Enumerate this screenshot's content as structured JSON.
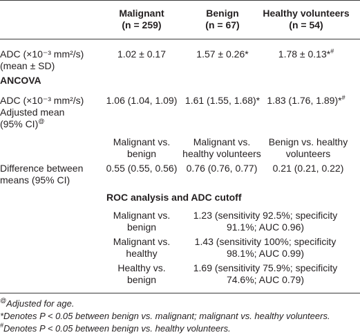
{
  "header": {
    "malignant_name": "Malignant",
    "malignant_n": "(n = 259)",
    "benign_name": "Benign",
    "benign_n": "(n = 67)",
    "healthy_name": "Healthy volunteers",
    "healthy_n": "(n = 54)"
  },
  "adc_row": {
    "label_line1": "ADC (×10⁻³ mm²/s)",
    "label_line2": "(mean ± SD)",
    "malignant": "1.02 ± 0.17",
    "benign": "1.57 ± 0.26*",
    "healthy": "1.78 ± 0.13*",
    "healthy_mark": "#"
  },
  "ancova": {
    "heading": "ANCOVA",
    "label_line1": "ADC (×10⁻³ mm²/s)",
    "label_line2": "Adjusted mean",
    "label_line3": "(95% CI)",
    "label_mark": "@",
    "malignant": "1.06 (1.04, 1.09)",
    "benign": "1.61 (1.55, 1.68)*",
    "healthy": "1.83 (1.76, 1.89)*",
    "healthy_mark": "#"
  },
  "comparisons": {
    "col1_line1": "Malignant vs.",
    "col1_line2": "benign",
    "col2_line1": "Malignant vs.",
    "col2_line2": "healthy volunteers",
    "col3_line1": "Benign vs. healthy",
    "col3_line2": "volunteers",
    "diff_label_line1": "Difference between",
    "diff_label_line2": "means (95% CI)",
    "diff1": "0.55 (0.55, 0.56)",
    "diff2": "0.76 (0.76, 0.77)",
    "diff3": "0.21 (0.21, 0.22)"
  },
  "roc": {
    "heading": "ROC analysis and ADC cutoff",
    "rows": [
      {
        "label1": "Malignant vs.",
        "label2": "benign",
        "value1": "1.23 (sensitivity 92.5%; specificity",
        "value2": "91.1%; AUC 0.96)"
      },
      {
        "label1": "Malignant vs.",
        "label2": "healthy",
        "value1": "1.43 (sensitivity 100%; specificity",
        "value2": "98.1%; AUC 0.99)"
      },
      {
        "label1": "Healthy vs.",
        "label2": "benign",
        "value1": "1.69 (sensitivity 75.9%; specificity",
        "value2": "74.6%; AUC 0.79)"
      }
    ]
  },
  "footnotes": {
    "f1_mark": "@",
    "f1_text": "Adjusted for age.",
    "f2_text": "*Denotes P < 0.05 between benign vs. malignant; malignant vs. healthy volunteers.",
    "f3_mark": "#",
    "f3_text": "Denotes P < 0.05 between benign vs. healthy volunteers."
  }
}
